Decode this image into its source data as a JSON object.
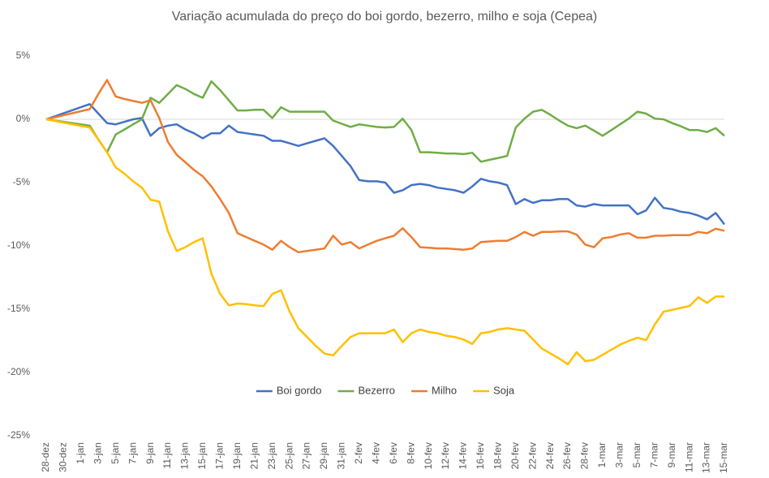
{
  "chart_data": {
    "type": "line",
    "title": "Variação acumulada do preço do boi gordo, bezerro, milho e soja (Cepea)",
    "categories": [
      "28-dez",
      null,
      "30-dez",
      null,
      "1-jan",
      null,
      "3-jan",
      null,
      "5-jan",
      null,
      "7-jan",
      null,
      "9-jan",
      null,
      "11-jan",
      null,
      "13-jan",
      null,
      "15-jan",
      null,
      "17-jan",
      null,
      "19-jan",
      null,
      "21-jan",
      null,
      "23-jan",
      null,
      "25-jan",
      null,
      "27-jan",
      null,
      "29-jan",
      null,
      "31-jan",
      null,
      "2-fev",
      null,
      "4-fev",
      null,
      "6-fev",
      null,
      "8-fev",
      null,
      "10-fev",
      null,
      "12-fev",
      null,
      "14-fev",
      null,
      "16-fev",
      null,
      "18-fev",
      null,
      "20-fev",
      null,
      "22-fev",
      null,
      "24-fev",
      null,
      "26-fev",
      null,
      "28-fev",
      null,
      "1-mar",
      null,
      "3-mar",
      null,
      "5-mar",
      null,
      "7-mar",
      null,
      "9-mar",
      null,
      "11-mar",
      null,
      "13-mar",
      null,
      "15-mar"
    ],
    "series": [
      {
        "name": "Boi gordo",
        "color": "#4472c4",
        "values": [
          0,
          0.24,
          0.48,
          0.72,
          0.96,
          1.2,
          0.45,
          -0.3,
          -0.4,
          -0.2,
          0,
          0.1,
          -1.3,
          -0.7,
          -0.5,
          -0.4,
          -0.8,
          -1.1,
          -1.5,
          -1.1,
          -1.1,
          -0.5,
          -1.0,
          -1.1,
          -1.2,
          -1.3,
          -1.7,
          -1.7,
          -1.9,
          -2.1,
          -1.9,
          -1.7,
          -1.5,
          -2.1,
          -2.9,
          -3.7,
          -4.8,
          -4.9,
          -4.9,
          -5.0,
          -5.8,
          -5.6,
          -5.2,
          -5.1,
          -5.2,
          -5.4,
          -5.5,
          -5.6,
          -5.8,
          -5.3,
          -4.7,
          -4.9,
          -5.0,
          -5.2,
          -6.7,
          -6.3,
          -6.6,
          -6.4,
          -6.4,
          -6.3,
          -6.3,
          -6.8,
          -6.9,
          -6.7,
          -6.8,
          -6.8,
          -6.8,
          -6.8,
          -7.5,
          -7.2,
          -6.2,
          -7.0,
          -7.1,
          -7.3,
          -7.4,
          -7.6,
          -7.9,
          -7.4,
          -8.3
        ]
      },
      {
        "name": "Bezerro",
        "color": "#70ad47",
        "values": [
          0,
          -0.1,
          -0.2,
          -0.3,
          -0.4,
          -0.5,
          -1.6,
          -2.6,
          -1.2,
          -0.8,
          -0.4,
          0,
          1.7,
          1.3,
          2.0,
          2.7,
          2.4,
          2.0,
          1.7,
          3.0,
          2.3,
          1.5,
          0.7,
          0.7,
          0.75,
          0.75,
          0.1,
          0.95,
          0.6,
          0.6,
          0.6,
          0.6,
          0.6,
          -0.1,
          -0.35,
          -0.6,
          -0.4,
          -0.5,
          -0.6,
          -0.65,
          -0.6,
          0.05,
          -0.85,
          -2.6,
          -2.6,
          -2.65,
          -2.7,
          -2.7,
          -2.75,
          -2.65,
          -3.35,
          -3.2,
          -3.05,
          -2.9,
          -0.65,
          0.05,
          0.6,
          0.75,
          0.35,
          -0.1,
          -0.5,
          -0.7,
          -0.5,
          -0.9,
          -1.3,
          -0.85,
          -0.4,
          0.05,
          0.6,
          0.45,
          0.05,
          0,
          -0.3,
          -0.55,
          -0.85,
          -0.85,
          -1.0,
          -0.7,
          -1.3
        ]
      },
      {
        "name": "Milho",
        "color": "#ed7d31",
        "values": [
          0,
          0.16,
          0.32,
          0.48,
          0.64,
          0.8,
          2.0,
          3.1,
          1.8,
          1.6,
          1.45,
          1.3,
          1.5,
          0.1,
          -1.8,
          -2.8,
          -3.4,
          -4.0,
          -4.5,
          -5.3,
          -6.3,
          -7.4,
          -9.0,
          -9.3,
          -9.6,
          -9.9,
          -10.3,
          -9.6,
          -10.1,
          -10.5,
          -10.4,
          -10.3,
          -10.2,
          -9.2,
          -9.9,
          -9.7,
          -10.2,
          -9.9,
          -9.6,
          -9.4,
          -9.2,
          -8.6,
          -9.3,
          -10.1,
          -10.15,
          -10.2,
          -10.2,
          -10.25,
          -10.3,
          -10.2,
          -9.7,
          -9.65,
          -9.6,
          -9.6,
          -9.3,
          -8.9,
          -9.2,
          -8.9,
          -8.9,
          -8.85,
          -8.85,
          -9.1,
          -9.9,
          -10.1,
          -9.4,
          -9.3,
          -9.1,
          -9.0,
          -9.35,
          -9.35,
          -9.2,
          -9.2,
          -9.15,
          -9.15,
          -9.15,
          -8.9,
          -9.0,
          -8.65,
          -8.8
        ]
      },
      {
        "name": "Soja",
        "color": "#ffc000",
        "values": [
          0,
          -0.13,
          -0.26,
          -0.39,
          -0.52,
          -0.65,
          -1.6,
          -2.6,
          -3.8,
          -4.3,
          -4.9,
          -5.4,
          -6.35,
          -6.5,
          -8.85,
          -10.4,
          -10.1,
          -9.7,
          -9.4,
          -12.2,
          -13.8,
          -14.7,
          -14.55,
          -14.6,
          -14.7,
          -14.75,
          -13.8,
          -13.5,
          -15.2,
          -16.5,
          -17.2,
          -17.9,
          -18.5,
          -18.65,
          -17.9,
          -17.2,
          -16.9,
          -16.9,
          -16.9,
          -16.9,
          -16.6,
          -17.6,
          -16.9,
          -16.6,
          -16.8,
          -16.9,
          -17.1,
          -17.2,
          -17.4,
          -17.75,
          -16.9,
          -16.8,
          -16.6,
          -16.5,
          -16.6,
          -16.7,
          -17.4,
          -18.1,
          -18.5,
          -18.9,
          -19.35,
          -18.4,
          -19.1,
          -19.0,
          -18.6,
          -18.2,
          -17.8,
          -17.5,
          -17.25,
          -17.45,
          -16.2,
          -15.2,
          -15.05,
          -14.9,
          -14.75,
          -14.05,
          -14.5,
          -14.0,
          -14.0
        ]
      }
    ],
    "ylim": [
      -25,
      5
    ],
    "yticks": [
      {
        "value": -25,
        "label": "-25%"
      },
      {
        "value": -20,
        "label": "-20%"
      },
      {
        "value": -15,
        "label": "-15%"
      },
      {
        "value": -10,
        "label": "-10%"
      },
      {
        "value": -5,
        "label": "-5%"
      },
      {
        "value": 0,
        "label": "0%"
      },
      {
        "value": 5,
        "label": "5%"
      }
    ],
    "grid": false,
    "legend": "bottom"
  }
}
